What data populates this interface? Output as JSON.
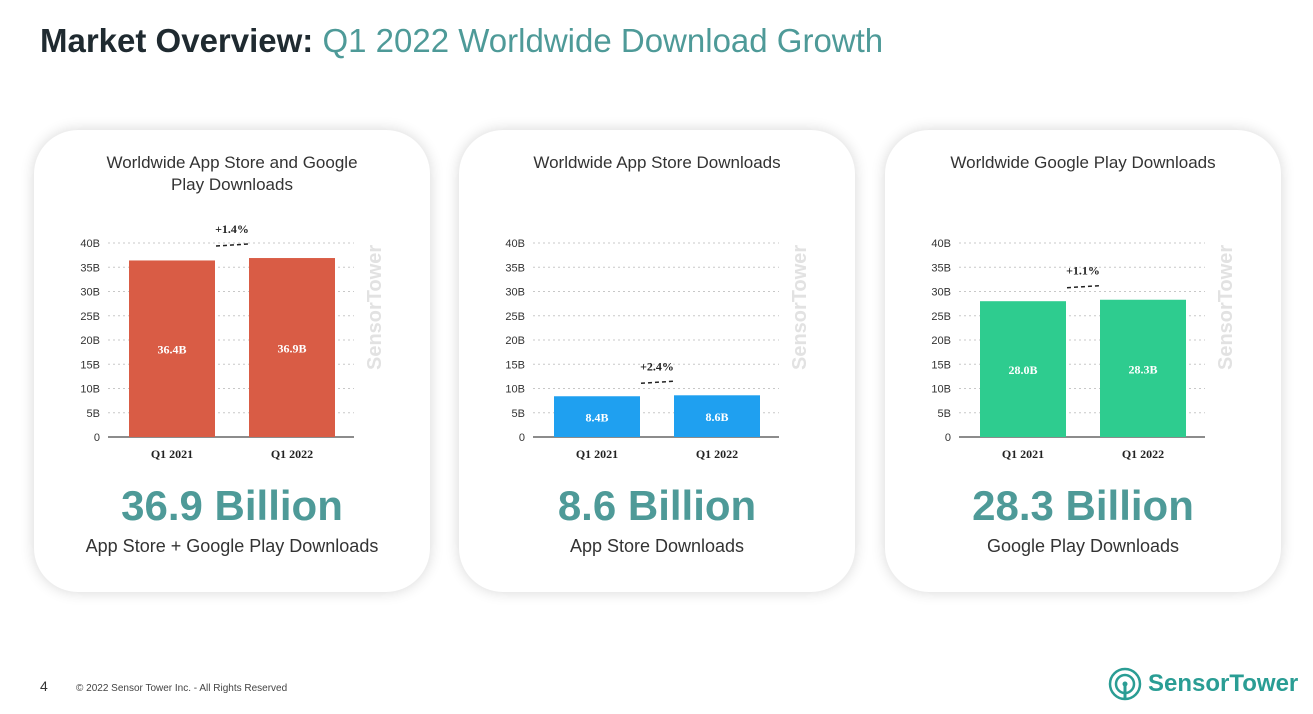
{
  "header": {
    "title_bold": "Market Overview:",
    "title_light": "Q1 2022 Worldwide Download Growth"
  },
  "cards": [
    {
      "title": "Worldwide App Store and Google Play Downloads",
      "big_number": "36.9 Billion",
      "subtitle": "App Store + Google Play Downloads",
      "watermark": "SensorTower"
    },
    {
      "title": "Worldwide App Store Downloads",
      "big_number": "8.6 Billion",
      "subtitle": "App Store Downloads",
      "watermark": "SensorTower"
    },
    {
      "title": "Worldwide Google Play Downloads",
      "big_number": "28.3 Billion",
      "subtitle": "Google Play Downloads",
      "watermark": "SensorTower"
    }
  ],
  "chart_data": [
    {
      "type": "bar",
      "title": "Worldwide App Store and Google Play Downloads",
      "categories": [
        "Q1 2021",
        "Q1 2022"
      ],
      "values": [
        36.4,
        36.9
      ],
      "value_labels": [
        "36.4B",
        "36.9B"
      ],
      "growth_label": "+1.4%",
      "color": "#d95c45",
      "ylim": [
        0,
        40
      ],
      "yticks": [
        "0",
        "5B",
        "10B",
        "15B",
        "20B",
        "25B",
        "30B",
        "35B",
        "40B"
      ],
      "grid": true
    },
    {
      "type": "bar",
      "title": "Worldwide App Store Downloads",
      "categories": [
        "Q1 2021",
        "Q1 2022"
      ],
      "values": [
        8.4,
        8.6
      ],
      "value_labels": [
        "8.4B",
        "8.6B"
      ],
      "growth_label": "+2.4%",
      "color": "#1fa0f0",
      "ylim": [
        0,
        40
      ],
      "yticks": [
        "0",
        "5B",
        "10B",
        "15B",
        "20B",
        "25B",
        "30B",
        "35B",
        "40B"
      ],
      "grid": true
    },
    {
      "type": "bar",
      "title": "Worldwide Google Play Downloads",
      "categories": [
        "Q1 2021",
        "Q1 2022"
      ],
      "values": [
        28.0,
        28.3
      ],
      "value_labels": [
        "28.0B",
        "28.3B"
      ],
      "growth_label": "+1.1%",
      "color": "#2ecc8f",
      "ylim": [
        0,
        40
      ],
      "yticks": [
        "0",
        "5B",
        "10B",
        "15B",
        "20B",
        "25B",
        "30B",
        "35B",
        "40B"
      ],
      "grid": true
    }
  ],
  "footer": {
    "page_number": "4",
    "copyright": "© 2022 Sensor Tower Inc. - All Rights Reserved",
    "logo_text": "SensorTower"
  },
  "colors": {
    "accent": "#4e9a98",
    "logo": "#2a9d94"
  }
}
